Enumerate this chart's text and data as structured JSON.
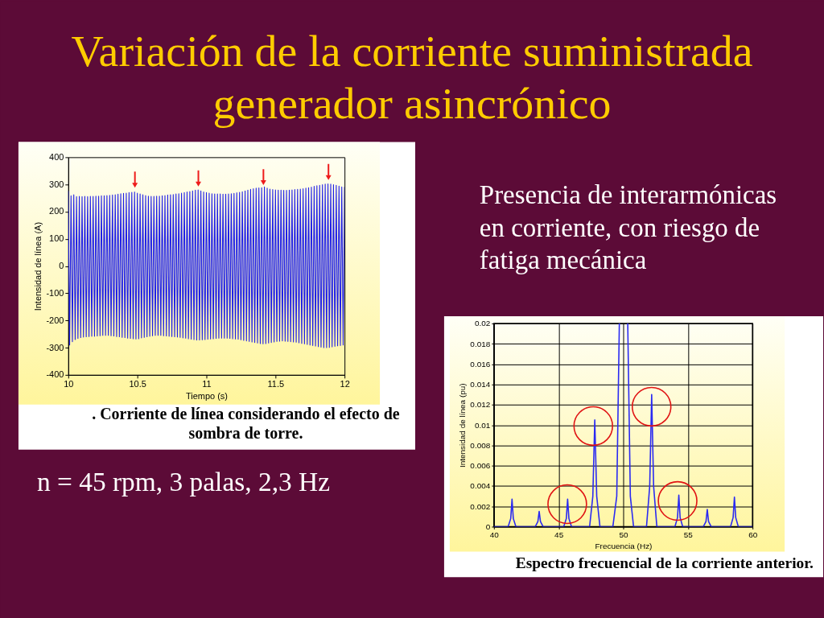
{
  "chart_data": [
    {
      "type": "line",
      "title": "Variación de la corriente suministrada\ngenerador asincrónico",
      "xlabel": "Tiempo (s)",
      "ylabel": "Intensidad de línea (A)",
      "x": [
        10,
        10.01,
        10.02,
        10.03,
        10.04,
        10.05,
        10.06,
        10.07,
        10.08,
        10.09,
        10.1,
        10.11,
        10.12,
        10.13,
        10.14,
        10.15,
        10.16,
        10.17,
        10.18,
        10.19,
        10.2,
        10.21,
        10.22,
        10.23,
        10.24,
        10.25,
        10.26,
        10.27,
        10.28,
        10.29,
        10.3,
        10.31,
        10.32,
        10.33,
        10.34,
        10.35,
        10.36,
        10.37,
        10.38,
        10.39,
        10.4,
        10.41,
        10.42,
        10.43,
        10.44,
        10.45,
        10.46,
        10.47,
        10.48,
        10.49,
        10.5,
        10.51,
        10.52,
        10.53,
        10.54,
        10.55,
        10.56,
        10.57,
        10.58,
        10.59,
        10.6,
        10.61,
        10.62,
        10.63,
        10.64,
        10.65,
        10.66,
        10.67,
        10.68,
        10.69,
        10.7,
        10.71,
        10.72,
        10.73,
        10.74,
        10.75,
        10.76,
        10.77,
        10.78,
        10.79,
        10.8,
        10.81,
        10.82,
        10.83,
        10.84,
        10.85,
        10.86,
        10.87,
        10.88,
        10.89,
        10.9,
        10.91,
        10.92,
        10.93,
        10.94,
        10.95,
        10.96,
        10.97,
        10.98,
        10.99,
        11,
        11.01,
        11.02,
        11.03,
        11.04,
        11.05,
        11.06,
        11.07,
        11.08,
        11.09,
        11.1,
        11.11,
        11.12,
        11.13,
        11.14,
        11.15,
        11.16,
        11.17,
        11.18,
        11.19,
        11.2,
        11.21,
        11.22,
        11.23,
        11.24,
        11.25,
        11.26,
        11.27,
        11.28,
        11.29,
        11.3,
        11.31,
        11.32,
        11.33,
        11.34,
        11.35,
        11.36,
        11.37,
        11.38,
        11.39,
        11.4,
        11.41,
        11.42,
        11.43,
        11.44,
        11.45,
        11.46,
        11.47,
        11.48,
        11.49,
        11.5,
        11.51,
        11.52,
        11.53,
        11.54,
        11.55,
        11.56,
        11.57,
        11.58,
        11.59,
        11.6,
        11.61,
        11.62,
        11.63,
        11.64,
        11.65,
        11.66,
        11.67,
        11.68,
        11.69,
        11.7,
        11.71,
        11.72,
        11.73,
        11.74,
        11.75,
        11.76,
        11.77,
        11.78,
        11.79,
        11.8,
        11.81,
        11.82,
        11.83,
        11.84,
        11.85,
        11.86,
        11.87,
        11.88,
        11.89,
        11.9,
        11.91,
        11.92,
        11.93,
        11.94,
        11.95,
        11.96,
        11.97,
        11.98,
        11.99,
        12
      ],
      "series": [
        {
          "color": "#1e1ee6",
          "values": [
            275,
            -290,
            258,
            -278,
            262,
            -270,
            255,
            -266,
            256,
            -263,
            255,
            -261,
            256,
            -260,
            255,
            -259,
            256,
            -258,
            256,
            -258,
            257,
            -257,
            257,
            -256,
            258,
            -255,
            258,
            -255,
            259,
            -255,
            260,
            -256,
            261,
            -257,
            262,
            -259,
            264,
            -260,
            266,
            -262,
            267,
            -263,
            268,
            -265,
            270,
            -266,
            271,
            -267,
            272,
            -268,
            268,
            -267,
            265,
            -264,
            262,
            -262,
            259,
            -260,
            257,
            -258,
            256,
            -256,
            256,
            -255,
            257,
            -255,
            257,
            -255,
            258,
            -256,
            259,
            -257,
            261,
            -258,
            262,
            -259,
            263,
            -260,
            265,
            -261,
            266,
            -262,
            268,
            -264,
            270,
            -265,
            272,
            -267,
            274,
            -269,
            276,
            -270,
            279,
            -272,
            280,
            -272,
            276,
            -271,
            272,
            -270,
            270,
            -269,
            268,
            -268,
            266,
            -267,
            265,
            -266,
            265,
            -265,
            265,
            -265,
            264,
            -265,
            264,
            -265,
            265,
            -266,
            266,
            -267,
            267,
            -268,
            269,
            -269,
            271,
            -271,
            273,
            -273,
            276,
            -275,
            279,
            -277,
            282,
            -279,
            284,
            -281,
            286,
            -283,
            287,
            -285,
            288,
            -286,
            291,
            -285,
            286,
            -283,
            283,
            -281,
            281,
            -279,
            280,
            -277,
            279,
            -276,
            279,
            -275,
            278,
            -276,
            278,
            -277,
            279,
            -278,
            280,
            -279,
            281,
            -280,
            282,
            -282,
            283,
            -284,
            284,
            -286,
            286,
            -288,
            288,
            -290,
            290,
            -292,
            293,
            -294,
            295,
            -296,
            297,
            -298,
            299,
            -300,
            301,
            -300,
            302,
            -299,
            301,
            -297,
            299,
            -295,
            297,
            -293,
            294,
            -292,
            291,
            -290,
            290
          ]
        }
      ],
      "xlim": [
        10,
        12
      ],
      "ylim": [
        -400,
        400
      ],
      "xticks": [
        10,
        10.5,
        11,
        11.5,
        12
      ],
      "yticks": [
        -400,
        -300,
        -200,
        -100,
        0,
        100,
        200,
        300,
        400
      ],
      "annotations": [
        ". Corriente de línea considerando el efecto de\nsombra de torre.",
        "n = 45 rpm, 3 palas, 2,3 Hz"
      ]
    },
    {
      "type": "line",
      "xlabel": "Frecuencia (Hz)",
      "ylabel": "Intensidad de línea (pu)",
      "x": [
        40,
        41.1,
        41.3,
        41.4,
        41.5,
        41.7,
        43.2,
        43.4,
        43.5,
        43.6,
        43.8,
        45.4,
        45.6,
        45.7,
        45.8,
        46,
        47.4,
        47.65,
        47.8,
        47.95,
        48.2,
        49.2,
        49.5,
        49.7,
        50,
        50.35,
        50.55,
        50.8,
        51.8,
        52.05,
        52.2,
        52.35,
        52.6,
        54,
        54.2,
        54.3,
        54.4,
        54.6,
        56.2,
        56.4,
        56.5,
        56.6,
        56.8,
        58.3,
        58.5,
        58.6,
        58.7,
        58.9,
        60
      ],
      "series": [
        {
          "color": "#2a2af2",
          "values": [
            0,
            0,
            0.0008,
            0.0027,
            0.0008,
            0,
            0,
            0.0005,
            0.0015,
            0.0005,
            0,
            0,
            0.0008,
            0.0027,
            0.0008,
            0,
            0,
            0.003,
            0.0105,
            0.003,
            0,
            0,
            0.003,
            0.02,
            null,
            0.02,
            0.003,
            0,
            0,
            0.004,
            0.013,
            0.004,
            0,
            0,
            0.0009,
            0.0031,
            0.0009,
            0,
            0,
            0.0005,
            0.0017,
            0.0005,
            0,
            0,
            0.0009,
            0.0029,
            0.0009,
            0,
            0
          ]
        }
      ],
      "xlim": [
        40,
        60
      ],
      "ylim": [
        0,
        0.02
      ],
      "xticks": [
        40,
        45,
        50,
        55,
        60
      ],
      "yticks": [
        0,
        0.002,
        0.004,
        0.006,
        0.008,
        0.01,
        0.012,
        0.014,
        0.016,
        0.018,
        0.02
      ],
      "grid": true,
      "annotations": [
        "Presencia de interarmónicas\nen corriente, con riesgo de\nfatiga mecánica",
        "Espectro frecuencial de la corriente anterior."
      ]
    }
  ]
}
